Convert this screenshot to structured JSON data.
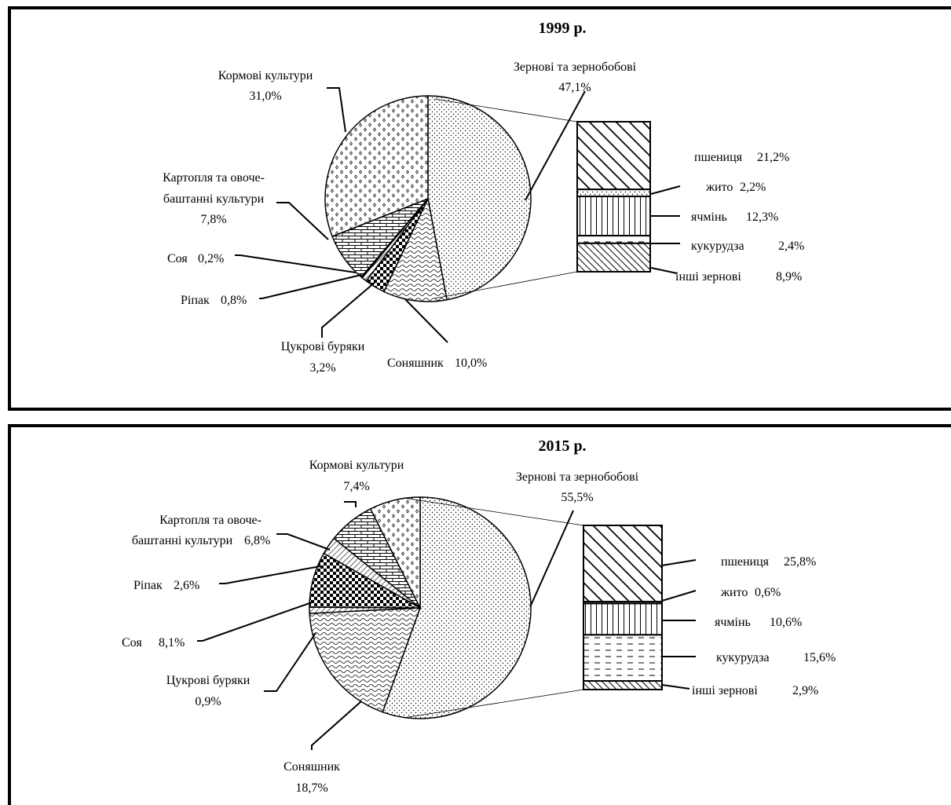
{
  "chart_data": [
    {
      "type": "pie",
      "title": "1999 р.",
      "slices": [
        {
          "label": "Зернові та зернобобові",
          "value": 47.1,
          "value_text": "47,1%",
          "pattern": "dots"
        },
        {
          "label": "Соняшник",
          "value": 10.0,
          "value_text": "10,0%",
          "pattern": "wave"
        },
        {
          "label": "Цукрові буряки",
          "value": 3.2,
          "value_text": "3,2%",
          "pattern": "checker"
        },
        {
          "label": "Ріпак",
          "value": 0.8,
          "value_text": "0,8%",
          "pattern": "hatch"
        },
        {
          "label": "Соя",
          "value": 0.2,
          "value_text": "0,2%",
          "pattern": "checker-fine"
        },
        {
          "label": "Картопля та овоче-баштанні культури",
          "value": 7.8,
          "value_text": "7,8%",
          "pattern": "brick"
        },
        {
          "label": "Кормові культури",
          "value": 31.0,
          "value_text": "31,0%",
          "pattern": "diamond"
        }
      ],
      "breakdown_of": "Зернові та зернобобові",
      "breakdown": [
        {
          "label": "пшениця",
          "value": 21.2,
          "value_text": "21,2%",
          "pattern": "diag-wide"
        },
        {
          "label": "жито",
          "value": 2.2,
          "value_text": "2,2%",
          "pattern": "dots"
        },
        {
          "label": "ячмінь",
          "value": 12.3,
          "value_text": "12,3%",
          "pattern": "vlines"
        },
        {
          "label": "кукурудза",
          "value": 2.4,
          "value_text": "2,4%",
          "pattern": "dashes"
        },
        {
          "label": "інші зернові",
          "value": 8.9,
          "value_text": "8,9%",
          "pattern": "diag-fine"
        }
      ]
    },
    {
      "type": "pie",
      "title": "2015 р.",
      "slices": [
        {
          "label": "Зернові та зернобобові",
          "value": 55.5,
          "value_text": "55,5%",
          "pattern": "dots"
        },
        {
          "label": "Соняшник",
          "value": 18.7,
          "value_text": "18,7%",
          "pattern": "wave"
        },
        {
          "label": "Цукрові буряки",
          "value": 0.9,
          "value_text": "0,9%",
          "pattern": "hatch"
        },
        {
          "label": "Соя",
          "value": 8.1,
          "value_text": "8,1%",
          "pattern": "checker"
        },
        {
          "label": "Ріпак",
          "value": 2.6,
          "value_text": "2,6%",
          "pattern": "hatch"
        },
        {
          "label": "Картопля та овоче-баштанні культури",
          "value": 6.8,
          "value_text": "6,8%",
          "pattern": "brick"
        },
        {
          "label": "Кормові культури",
          "value": 7.4,
          "value_text": "7,4%",
          "pattern": "diamond"
        }
      ],
      "breakdown_of": "Зернові та зернобобові",
      "breakdown": [
        {
          "label": "пшениця",
          "value": 25.8,
          "value_text": "25,8%",
          "pattern": "diag-wide"
        },
        {
          "label": "жито",
          "value": 0.6,
          "value_text": "0,6%",
          "pattern": "dots"
        },
        {
          "label": "ячмінь",
          "value": 10.6,
          "value_text": "10,6%",
          "pattern": "vlines"
        },
        {
          "label": "кукурудза",
          "value": 15.6,
          "value_text": "15,6%",
          "pattern": "dashes"
        },
        {
          "label": "інші зернові",
          "value": 2.9,
          "value_text": "2,9%",
          "pattern": "diag-fine"
        }
      ]
    }
  ]
}
